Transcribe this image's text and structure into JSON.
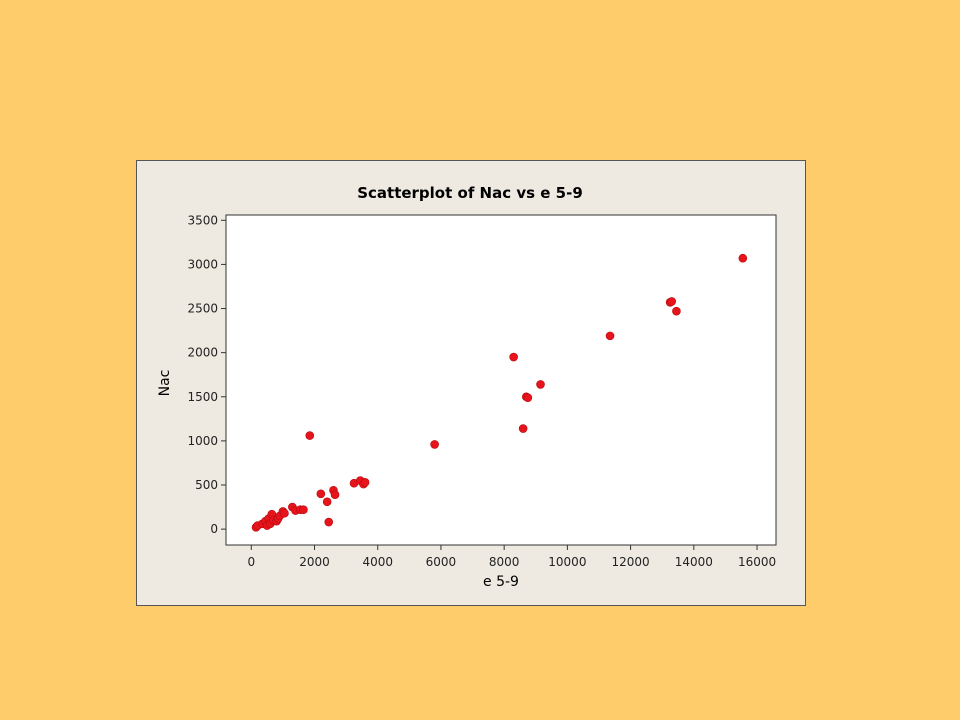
{
  "colors": {
    "background": "#FECC6A",
    "panel": "#EEEAE1",
    "plot_area": "#FFFFFF",
    "points": "#E8141B"
  },
  "chart_data": {
    "type": "scatter",
    "title": "Scatterplot of Nac vs e 5-9",
    "xlabel": "e 5-9",
    "ylabel": "Nac",
    "xlim": [
      -800,
      16600
    ],
    "ylim": [
      -180,
      3560
    ],
    "xticks": [
      0,
      2000,
      4000,
      6000,
      8000,
      10000,
      12000,
      14000,
      16000
    ],
    "yticks": [
      0,
      500,
      1000,
      1500,
      2000,
      2500,
      3000,
      3500
    ],
    "grid": false,
    "legend": "none",
    "series": [
      {
        "x": [
          150,
          200,
          350,
          450,
          500,
          550,
          600,
          650,
          700,
          800,
          850,
          900,
          1000,
          1050,
          1300,
          1400,
          1550,
          1650,
          1850,
          2200,
          2400,
          2450,
          2600,
          2650,
          3250,
          3450,
          3550,
          3600,
          5800,
          8300,
          8600,
          8700,
          8750,
          9150,
          11350,
          13250,
          13300,
          13450,
          15550
        ],
        "y": [
          20,
          40,
          60,
          90,
          40,
          120,
          60,
          170,
          100,
          90,
          120,
          150,
          200,
          180,
          250,
          210,
          220,
          220,
          1060,
          400,
          310,
          80,
          440,
          390,
          520,
          550,
          510,
          530,
          960,
          1950,
          1140,
          1500,
          1490,
          1640,
          2190,
          2570,
          2580,
          2470,
          3070
        ]
      }
    ]
  }
}
